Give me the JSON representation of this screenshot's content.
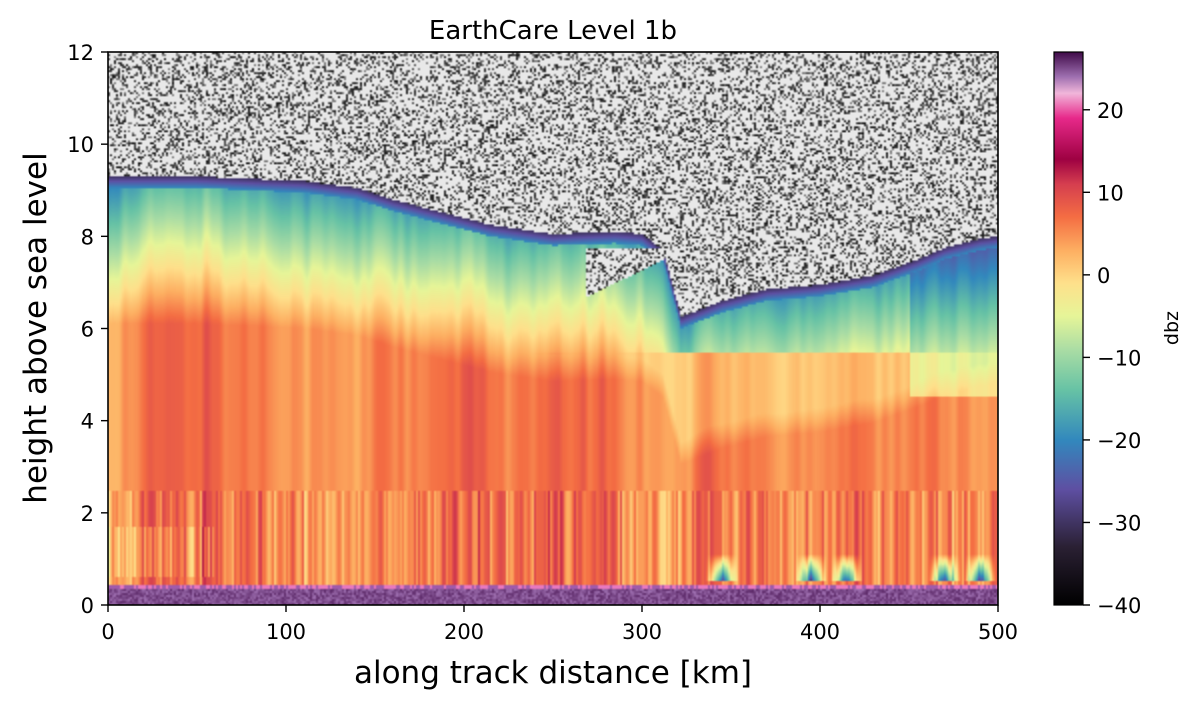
{
  "chart_data": {
    "type": "heatmap",
    "title": "EarthCare Level 1b",
    "xlabel": "along track distance [km]",
    "ylabel": "height above sea level",
    "xlim": [
      0,
      500
    ],
    "ylim": [
      0,
      12
    ],
    "x_ticks": [
      0,
      100,
      200,
      300,
      400,
      500
    ],
    "y_ticks": [
      0,
      2,
      4,
      6,
      8,
      10,
      12
    ],
    "colorbar": {
      "label": "dbz",
      "range": [
        -40,
        27
      ],
      "ticks": [
        -40,
        -30,
        -20,
        -10,
        0,
        10,
        20
      ],
      "tick_labels": [
        "−40",
        "−30",
        "−20",
        "−10",
        "0",
        "10",
        "20"
      ],
      "colormap": "Spectral_r with dark low end",
      "stops": [
        {
          "value": -40,
          "color": "#000000"
        },
        {
          "value": -33,
          "color": "#2a2033"
        },
        {
          "value": -26,
          "color": "#5e4fa2"
        },
        {
          "value": -20,
          "color": "#3288bd"
        },
        {
          "value": -14,
          "color": "#66c2a5"
        },
        {
          "value": -9,
          "color": "#abdda4"
        },
        {
          "value": -5,
          "color": "#e6f598"
        },
        {
          "value": -1,
          "color": "#fee08b"
        },
        {
          "value": 3,
          "color": "#fdae61"
        },
        {
          "value": 7,
          "color": "#f46d43"
        },
        {
          "value": 11,
          "color": "#d53e4f"
        },
        {
          "value": 14,
          "color": "#9e0142"
        },
        {
          "value": 19,
          "color": "#e7298a"
        },
        {
          "value": 22,
          "color": "#f1b6da"
        },
        {
          "value": 24,
          "color": "#9e6fb0"
        },
        {
          "value": 27,
          "color": "#3f0a48"
        }
      ]
    },
    "background_noise_color": "#e8e8e8",
    "cloud_top_km": [
      [
        0,
        9.3
      ],
      [
        20,
        9.25
      ],
      [
        50,
        9.3
      ],
      [
        80,
        9.2
      ],
      [
        110,
        9.2
      ],
      [
        140,
        9.05
      ],
      [
        160,
        8.8
      ],
      [
        185,
        8.55
      ],
      [
        215,
        8.25
      ],
      [
        250,
        8.05
      ],
      [
        285,
        8.1
      ],
      [
        300,
        8.05
      ],
      [
        312,
        7.7
      ],
      [
        290,
        7.2
      ],
      [
        265,
        6.65
      ],
      [
        290,
        6.5
      ],
      [
        310,
        6.5
      ],
      [
        322,
        6.25
      ],
      [
        345,
        6.6
      ],
      [
        370,
        6.85
      ],
      [
        400,
        6.95
      ],
      [
        430,
        7.15
      ],
      [
        455,
        7.5
      ],
      [
        470,
        7.75
      ],
      [
        490,
        7.95
      ],
      [
        500,
        8.0
      ]
    ],
    "surface_band_km": [
      0.0,
      0.45
    ],
    "description_fields": {
      "upper_region": "noise",
      "mid_cloud": "reflectivity -25 to 5 dbz",
      "lower_precip": "reflectivity 0 to 15 dbz",
      "surface": "reflectivity about 25 dbz"
    }
  }
}
